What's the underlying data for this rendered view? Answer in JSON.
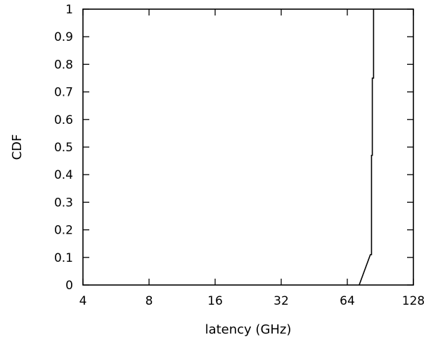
{
  "chart_data": {
    "type": "line",
    "title": "",
    "xlabel": "latency (GHz)",
    "ylabel": "CDF",
    "xscale": "log2",
    "xlim": [
      4,
      128
    ],
    "ylim": [
      0,
      1
    ],
    "xticks": [
      4,
      8,
      16,
      32,
      64,
      128
    ],
    "xtick_labels": [
      "4",
      "8",
      "16",
      "32",
      "64",
      "128"
    ],
    "yticks": [
      0,
      0.1,
      0.2,
      0.3,
      0.4,
      0.5,
      0.6,
      0.7,
      0.8,
      0.9,
      1
    ],
    "ytick_labels": [
      "0",
      "0.1",
      "0.2",
      "0.3",
      "0.4",
      "0.5",
      "0.6",
      "0.7",
      "0.8",
      "0.9",
      "1"
    ],
    "grid": false,
    "legend": "none",
    "series": [
      {
        "x": [
          72.5,
          81.5,
          82.5,
          82.5,
          83.2,
          83.2,
          84.3,
          84.3
        ],
        "y": [
          0,
          0.11,
          0.11,
          0.47,
          0.47,
          0.75,
          0.75,
          1.0
        ]
      }
    ]
  }
}
